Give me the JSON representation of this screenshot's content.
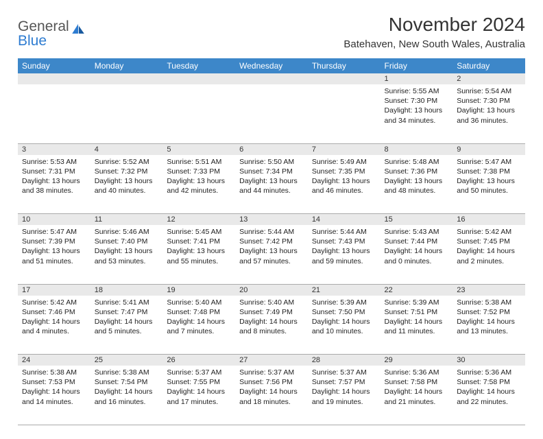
{
  "brand": {
    "line1": "General",
    "line2": "Blue"
  },
  "title": "November 2024",
  "location": "Batehaven, New South Wales, Australia",
  "colors": {
    "header_bg": "#3d87c9",
    "header_fg": "#ffffff",
    "daynum_bg": "#e9e9e9",
    "border": "#aaaaaa",
    "text": "#222222",
    "brand_gray": "#555555",
    "brand_blue": "#2e7cd1"
  },
  "fonts": {
    "title_size": 28,
    "location_size": 15,
    "header_size": 12,
    "cell_size": 10.5
  },
  "weekdays": [
    "Sunday",
    "Monday",
    "Tuesday",
    "Wednesday",
    "Thursday",
    "Friday",
    "Saturday"
  ],
  "weeks": [
    [
      null,
      null,
      null,
      null,
      null,
      {
        "n": 1,
        "sunrise": "5:55 AM",
        "sunset": "7:30 PM",
        "daylight": "13 hours and 34 minutes."
      },
      {
        "n": 2,
        "sunrise": "5:54 AM",
        "sunset": "7:30 PM",
        "daylight": "13 hours and 36 minutes."
      }
    ],
    [
      {
        "n": 3,
        "sunrise": "5:53 AM",
        "sunset": "7:31 PM",
        "daylight": "13 hours and 38 minutes."
      },
      {
        "n": 4,
        "sunrise": "5:52 AM",
        "sunset": "7:32 PM",
        "daylight": "13 hours and 40 minutes."
      },
      {
        "n": 5,
        "sunrise": "5:51 AM",
        "sunset": "7:33 PM",
        "daylight": "13 hours and 42 minutes."
      },
      {
        "n": 6,
        "sunrise": "5:50 AM",
        "sunset": "7:34 PM",
        "daylight": "13 hours and 44 minutes."
      },
      {
        "n": 7,
        "sunrise": "5:49 AM",
        "sunset": "7:35 PM",
        "daylight": "13 hours and 46 minutes."
      },
      {
        "n": 8,
        "sunrise": "5:48 AM",
        "sunset": "7:36 PM",
        "daylight": "13 hours and 48 minutes."
      },
      {
        "n": 9,
        "sunrise": "5:47 AM",
        "sunset": "7:38 PM",
        "daylight": "13 hours and 50 minutes."
      }
    ],
    [
      {
        "n": 10,
        "sunrise": "5:47 AM",
        "sunset": "7:39 PM",
        "daylight": "13 hours and 51 minutes."
      },
      {
        "n": 11,
        "sunrise": "5:46 AM",
        "sunset": "7:40 PM",
        "daylight": "13 hours and 53 minutes."
      },
      {
        "n": 12,
        "sunrise": "5:45 AM",
        "sunset": "7:41 PM",
        "daylight": "13 hours and 55 minutes."
      },
      {
        "n": 13,
        "sunrise": "5:44 AM",
        "sunset": "7:42 PM",
        "daylight": "13 hours and 57 minutes."
      },
      {
        "n": 14,
        "sunrise": "5:44 AM",
        "sunset": "7:43 PM",
        "daylight": "13 hours and 59 minutes."
      },
      {
        "n": 15,
        "sunrise": "5:43 AM",
        "sunset": "7:44 PM",
        "daylight": "14 hours and 0 minutes."
      },
      {
        "n": 16,
        "sunrise": "5:42 AM",
        "sunset": "7:45 PM",
        "daylight": "14 hours and 2 minutes."
      }
    ],
    [
      {
        "n": 17,
        "sunrise": "5:42 AM",
        "sunset": "7:46 PM",
        "daylight": "14 hours and 4 minutes."
      },
      {
        "n": 18,
        "sunrise": "5:41 AM",
        "sunset": "7:47 PM",
        "daylight": "14 hours and 5 minutes."
      },
      {
        "n": 19,
        "sunrise": "5:40 AM",
        "sunset": "7:48 PM",
        "daylight": "14 hours and 7 minutes."
      },
      {
        "n": 20,
        "sunrise": "5:40 AM",
        "sunset": "7:49 PM",
        "daylight": "14 hours and 8 minutes."
      },
      {
        "n": 21,
        "sunrise": "5:39 AM",
        "sunset": "7:50 PM",
        "daylight": "14 hours and 10 minutes."
      },
      {
        "n": 22,
        "sunrise": "5:39 AM",
        "sunset": "7:51 PM",
        "daylight": "14 hours and 11 minutes."
      },
      {
        "n": 23,
        "sunrise": "5:38 AM",
        "sunset": "7:52 PM",
        "daylight": "14 hours and 13 minutes."
      }
    ],
    [
      {
        "n": 24,
        "sunrise": "5:38 AM",
        "sunset": "7:53 PM",
        "daylight": "14 hours and 14 minutes."
      },
      {
        "n": 25,
        "sunrise": "5:38 AM",
        "sunset": "7:54 PM",
        "daylight": "14 hours and 16 minutes."
      },
      {
        "n": 26,
        "sunrise": "5:37 AM",
        "sunset": "7:55 PM",
        "daylight": "14 hours and 17 minutes."
      },
      {
        "n": 27,
        "sunrise": "5:37 AM",
        "sunset": "7:56 PM",
        "daylight": "14 hours and 18 minutes."
      },
      {
        "n": 28,
        "sunrise": "5:37 AM",
        "sunset": "7:57 PM",
        "daylight": "14 hours and 19 minutes."
      },
      {
        "n": 29,
        "sunrise": "5:36 AM",
        "sunset": "7:58 PM",
        "daylight": "14 hours and 21 minutes."
      },
      {
        "n": 30,
        "sunrise": "5:36 AM",
        "sunset": "7:58 PM",
        "daylight": "14 hours and 22 minutes."
      }
    ]
  ],
  "labels": {
    "sunrise": "Sunrise:",
    "sunset": "Sunset:",
    "daylight": "Daylight:"
  }
}
